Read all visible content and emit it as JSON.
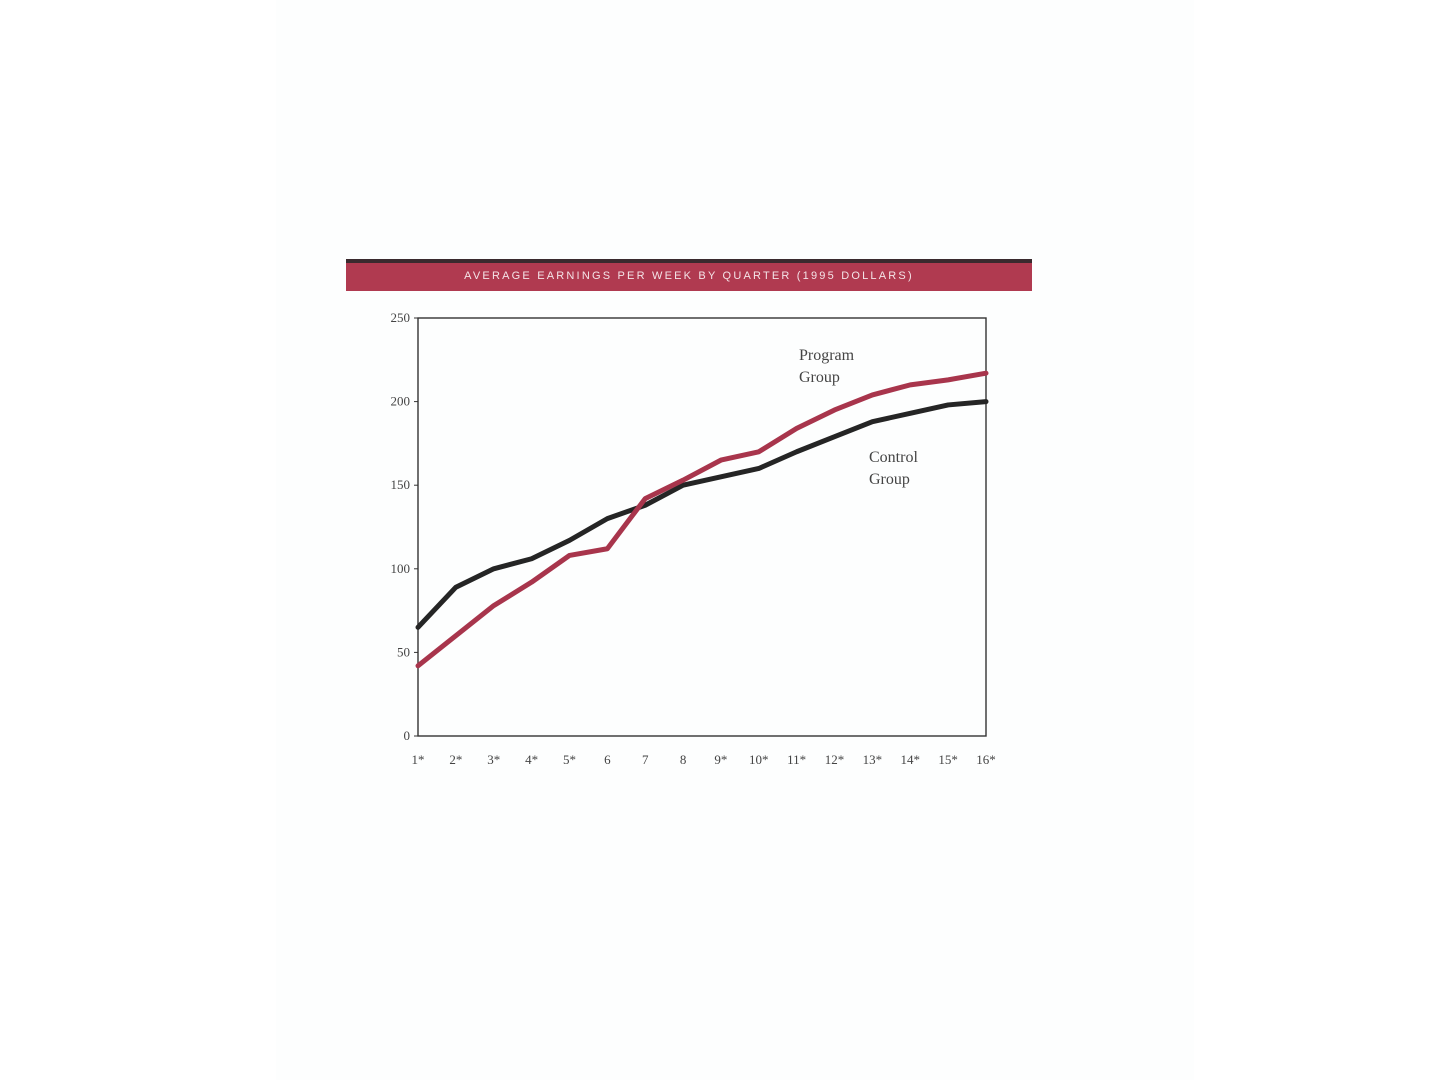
{
  "colors": {
    "banner": "#b03a50",
    "program_line": "#a8354c",
    "control_line": "#252525",
    "axis": "#333333",
    "text": "#444444"
  },
  "chart_data": {
    "type": "line",
    "title": "AVERAGE EARNINGS PER WEEK BY QUARTER (1995 DOLLARS)",
    "xlabel": "",
    "ylabel": "",
    "categories": [
      "1*",
      "2*",
      "3*",
      "4*",
      "5*",
      "6",
      "7",
      "8",
      "9*",
      "10*",
      "11*",
      "12*",
      "13*",
      "14*",
      "15*",
      "16*"
    ],
    "ylim": [
      0,
      250
    ],
    "yticks": [
      0,
      50,
      100,
      150,
      200,
      250
    ],
    "grid": false,
    "series": [
      {
        "name": "Program Group",
        "color": "#a8354c",
        "values": [
          42,
          60,
          78,
          92,
          108,
          112,
          142,
          153,
          165,
          170,
          184,
          195,
          204,
          210,
          213,
          217
        ]
      },
      {
        "name": "Control Group",
        "color": "#252525",
        "values": [
          65,
          89,
          100,
          106,
          117,
          130,
          138,
          150,
          155,
          160,
          170,
          179,
          188,
          193,
          198,
          200
        ]
      }
    ],
    "annotations": {
      "program": [
        "Program",
        "Group"
      ],
      "control": [
        "Control",
        "Group"
      ]
    }
  }
}
